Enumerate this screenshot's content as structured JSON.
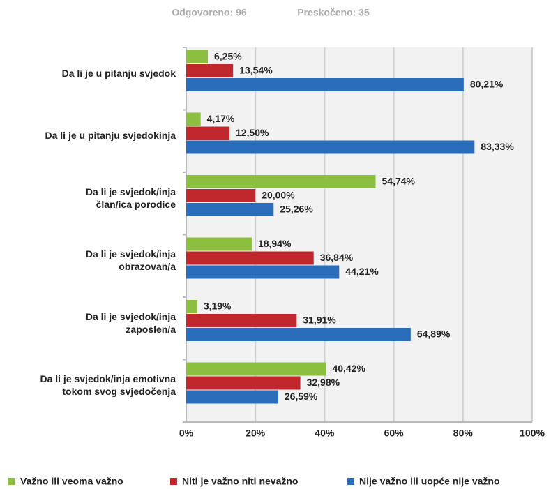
{
  "chart_data": {
    "type": "bar",
    "orientation": "horizontal",
    "answered": "Odgovoreno: 96",
    "skipped": "Preskočeno: 35",
    "categories": [
      "Da li je u pitanju svjedok",
      "Da li je u pitanju svjedokinja",
      "Da li je svjedok/inja\nčlan/ica porodice",
      "Da li je svjedok/inja\nobrazovan/a",
      "Da li je svjedok/inja\nzaposlen/a",
      "Da li je svjedok/inja emotivna\ntokom svog svjedočenja"
    ],
    "series": [
      {
        "name": "Važno ili veoma važno",
        "color": "#8cbf3f",
        "values": [
          6.25,
          4.17,
          54.74,
          18.94,
          3.19,
          40.42
        ],
        "value_labels": [
          "6,25%",
          "4,17%",
          "54,74%",
          "18,94%",
          "3,19%",
          "40,42%"
        ]
      },
      {
        "name": "Niti je važno niti nevažno",
        "color": "#c0282d",
        "values": [
          13.54,
          12.5,
          20,
          36.84,
          31.91,
          32.98
        ],
        "value_labels": [
          "13,54%",
          "12,50%",
          "20,00%",
          "36,84%",
          "31,91%",
          "32,98%"
        ]
      },
      {
        "name": "Nije važno ili uopće nije važno",
        "color": "#2a6ebb",
        "values": [
          80.21,
          83.33,
          25.26,
          44.21,
          64.89,
          26.59
        ],
        "value_labels": [
          "80,21%",
          "83,33%",
          "25,26%",
          "44,21%",
          "64,89%",
          "26,59%"
        ]
      }
    ],
    "xlim": [
      0,
      100
    ],
    "xticks": [
      {
        "value": 0,
        "label": "0%"
      },
      {
        "value": 20,
        "label": "20%"
      },
      {
        "value": 40,
        "label": "40%"
      },
      {
        "value": 60,
        "label": "60%"
      },
      {
        "value": 80,
        "label": "80%"
      },
      {
        "value": 100,
        "label": "100%"
      }
    ],
    "grid": true
  }
}
